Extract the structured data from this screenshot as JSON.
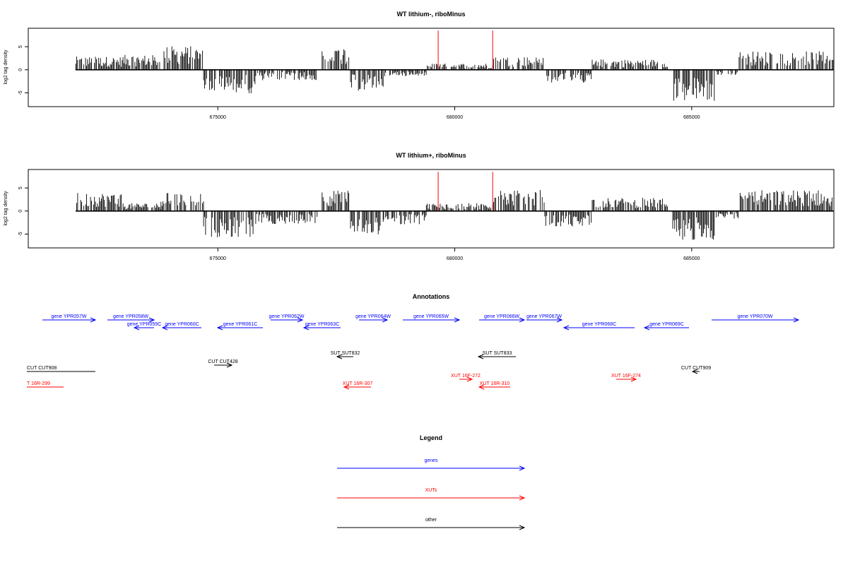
{
  "chart_data": [
    {
      "type": "bar",
      "title": "WT lithium-, riboMinus",
      "ylabel": "log2 tag density",
      "xlim": [
        671000,
        688000
      ],
      "ylim": [
        -8,
        9
      ],
      "x_ticks": [
        675000,
        680000,
        685000
      ],
      "x_tick_labels": [
        "675000",
        "680000",
        "685000"
      ],
      "y_ticks": [
        -5,
        0,
        5
      ],
      "y_tick_labels": [
        "-5",
        "0",
        "5"
      ],
      "signal_x_range": [
        672000,
        688000
      ],
      "highlight_color": "#ff0000",
      "bar_color": "#000000",
      "highlights": [
        {
          "x": 679650,
          "y": 8.5
        },
        {
          "x": 680800,
          "y": 8.5
        }
      ],
      "segments": [
        {
          "x0": 672000,
          "x1": 673000,
          "y": 2.5
        },
        {
          "x0": 673000,
          "x1": 673800,
          "y": 2.8
        },
        {
          "x0": 673800,
          "x1": 674700,
          "y": 4.5
        },
        {
          "x0": 674700,
          "x1": 675800,
          "y": -4.5
        },
        {
          "x0": 675800,
          "x1": 677100,
          "y": -2
        },
        {
          "x0": 677200,
          "x1": 677800,
          "y": 4.5
        },
        {
          "x0": 677800,
          "x1": 678500,
          "y": -4
        },
        {
          "x0": 678500,
          "x1": 679400,
          "y": -1.2
        },
        {
          "x0": 679400,
          "x1": 680800,
          "y": 1.2
        },
        {
          "x0": 680800,
          "x1": 681900,
          "y": 2.5
        },
        {
          "x0": 681900,
          "x1": 682900,
          "y": -2.5
        },
        {
          "x0": 682900,
          "x1": 684500,
          "y": 2
        },
        {
          "x0": 684600,
          "x1": 685500,
          "y": -6
        },
        {
          "x0": 685500,
          "x1": 686000,
          "y": -1
        },
        {
          "x0": 686000,
          "x1": 688000,
          "y": 3.5
        }
      ]
    },
    {
      "type": "bar",
      "title": "WT lithium+, riboMinus",
      "ylabel": "log2 tag density",
      "xlim": [
        671000,
        688000
      ],
      "ylim": [
        -8,
        9
      ],
      "x_ticks": [
        675000,
        680000,
        685000
      ],
      "x_tick_labels": [
        "675000",
        "680000",
        "685000"
      ],
      "y_ticks": [
        -5,
        0,
        5
      ],
      "y_tick_labels": [
        "-5",
        "0",
        "5"
      ],
      "signal_x_range": [
        672000,
        688000
      ],
      "highlight_color": "#ff0000",
      "bar_color": "#000000",
      "highlights": [
        {
          "x": 679650,
          "y": 8.5
        },
        {
          "x": 680800,
          "y": 8.5
        }
      ],
      "segments": [
        {
          "x0": 672000,
          "x1": 673000,
          "y": 3.5
        },
        {
          "x0": 673000,
          "x1": 673800,
          "y": 1.5
        },
        {
          "x0": 673800,
          "x1": 674700,
          "y": 3.5
        },
        {
          "x0": 674700,
          "x1": 675800,
          "y": -5
        },
        {
          "x0": 675800,
          "x1": 677100,
          "y": -2.5
        },
        {
          "x0": 677200,
          "x1": 677800,
          "y": 4
        },
        {
          "x0": 677800,
          "x1": 678500,
          "y": -4.5
        },
        {
          "x0": 678500,
          "x1": 679400,
          "y": -2.5
        },
        {
          "x0": 679400,
          "x1": 680800,
          "y": 1.5
        },
        {
          "x0": 680800,
          "x1": 681900,
          "y": 4
        },
        {
          "x0": 681900,
          "x1": 682900,
          "y": -3
        },
        {
          "x0": 682900,
          "x1": 684500,
          "y": 2.5
        },
        {
          "x0": 684600,
          "x1": 685500,
          "y": -5.5
        },
        {
          "x0": 685500,
          "x1": 686000,
          "y": -1.5
        },
        {
          "x0": 686000,
          "x1": 688000,
          "y": 4
        }
      ]
    }
  ],
  "annotations": {
    "title": "Annotations",
    "colors": {
      "gene": "#0000ff",
      "xut": "#ff0000",
      "other": "#000000"
    },
    "features": [
      {
        "label": "gene YPR057W",
        "x0": 60,
        "x1": 135,
        "row": 1,
        "dir": "right",
        "kind": "gene"
      },
      {
        "label": "gene YPR058W",
        "x0": 152,
        "x1": 218,
        "row": 1,
        "dir": "right",
        "kind": "gene"
      },
      {
        "label": "gene YPR059C",
        "x0": 190,
        "x1": 218,
        "row": 2,
        "dir": "left",
        "kind": "gene"
      },
      {
        "label": "gene YPR060C",
        "x0": 230,
        "x1": 285,
        "row": 2,
        "dir": "left",
        "kind": "gene"
      },
      {
        "label": "gene YPR061C",
        "x0": 308,
        "x1": 372,
        "row": 2,
        "dir": "left",
        "kind": "gene"
      },
      {
        "label": "gene YPR062W",
        "x0": 383,
        "x1": 428,
        "row": 1,
        "dir": "right",
        "kind": "gene"
      },
      {
        "label": "gene YPR063C",
        "x0": 430,
        "x1": 482,
        "row": 2,
        "dir": "left",
        "kind": "gene"
      },
      {
        "label": "gene YPR064W",
        "x0": 508,
        "x1": 548,
        "row": 1,
        "dir": "right",
        "kind": "gene"
      },
      {
        "label": "gene YPR065W",
        "x0": 570,
        "x1": 650,
        "row": 1,
        "dir": "right",
        "kind": "gene"
      },
      {
        "label": "gene YPR066W",
        "x0": 678,
        "x1": 742,
        "row": 1,
        "dir": "right",
        "kind": "gene"
      },
      {
        "label": "gene YPR067W",
        "x0": 745,
        "x1": 795,
        "row": 1,
        "dir": "right",
        "kind": "gene"
      },
      {
        "label": "gene YPR068C",
        "x0": 798,
        "x1": 898,
        "row": 2,
        "dir": "left",
        "kind": "gene"
      },
      {
        "label": "gene YPR069C",
        "x0": 912,
        "x1": 975,
        "row": 2,
        "dir": "left",
        "kind": "gene"
      },
      {
        "label": "gene YPR070W",
        "x0": 1007,
        "x1": 1130,
        "row": 1,
        "dir": "right",
        "kind": "gene"
      },
      {
        "label": "SUT SUT832",
        "x0": 477,
        "x1": 500,
        "row": 3,
        "dir": "left",
        "kind": "other"
      },
      {
        "label": "SUT SUT833",
        "x0": 677,
        "x1": 730,
        "row": 3,
        "dir": "left",
        "kind": "other"
      },
      {
        "label": "CUT CUT428",
        "x0": 303,
        "x1": 328,
        "row": 4,
        "dir": "right",
        "kind": "other"
      },
      {
        "label": "CUT CUT908",
        "x0": 38,
        "x1": 135,
        "row": 5,
        "dir": "none",
        "kind": "other"
      },
      {
        "label": "CUT CUT909",
        "x0": 980,
        "x1": 990,
        "row": 5,
        "dir": "left",
        "kind": "other"
      },
      {
        "label": "T 16R-299",
        "x0": 38,
        "x1": 90,
        "row": 7,
        "dir": "none",
        "kind": "xut"
      },
      {
        "label": "XUT 16F-272",
        "x0": 650,
        "x1": 668,
        "row": 6,
        "dir": "right",
        "kind": "xut"
      },
      {
        "label": "XUT 16F-274",
        "x0": 872,
        "x1": 900,
        "row": 6,
        "dir": "right",
        "kind": "xut"
      },
      {
        "label": "XUT 16R-307",
        "x0": 487,
        "x1": 525,
        "row": 7,
        "dir": "left",
        "kind": "xut"
      },
      {
        "label": "XUT 16R-310",
        "x0": 678,
        "x1": 722,
        "row": 7,
        "dir": "left",
        "kind": "xut"
      }
    ]
  },
  "legend": {
    "title": "Legend",
    "items": [
      {
        "label": "genes",
        "color": "#0000ff"
      },
      {
        "label": "XUTs",
        "color": "#ff0000"
      },
      {
        "label": "other",
        "color": "#000000"
      }
    ]
  }
}
